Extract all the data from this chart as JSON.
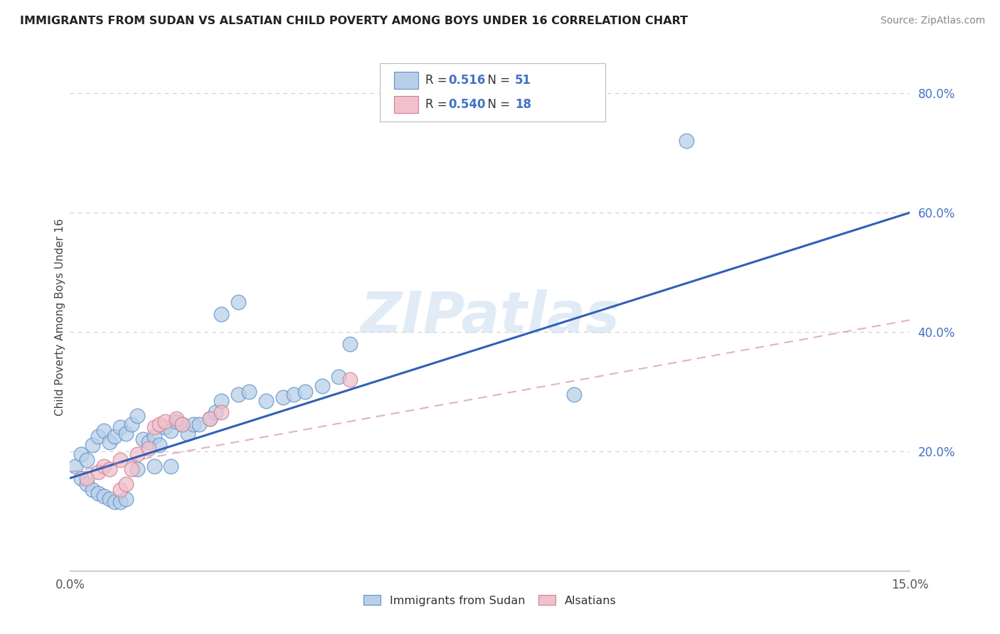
{
  "title": "IMMIGRANTS FROM SUDAN VS ALSATIAN CHILD POVERTY AMONG BOYS UNDER 16 CORRELATION CHART",
  "source": "Source: ZipAtlas.com",
  "ylabel": "Child Poverty Among Boys Under 16",
  "xlim": [
    0.0,
    0.15
  ],
  "ylim": [
    0.0,
    0.85
  ],
  "yticks": [
    0.2,
    0.4,
    0.6,
    0.8
  ],
  "ytick_labels": [
    "20.0%",
    "40.0%",
    "60.0%",
    "80.0%"
  ],
  "xticks": [
    0.0,
    0.15
  ],
  "xtick_labels": [
    "0.0%",
    "15.0%"
  ],
  "scatter_blue": [
    [
      0.001,
      0.175
    ],
    [
      0.002,
      0.195
    ],
    [
      0.003,
      0.185
    ],
    [
      0.004,
      0.21
    ],
    [
      0.005,
      0.225
    ],
    [
      0.006,
      0.235
    ],
    [
      0.007,
      0.215
    ],
    [
      0.008,
      0.225
    ],
    [
      0.009,
      0.24
    ],
    [
      0.01,
      0.23
    ],
    [
      0.011,
      0.245
    ],
    [
      0.012,
      0.26
    ],
    [
      0.013,
      0.22
    ],
    [
      0.014,
      0.215
    ],
    [
      0.015,
      0.225
    ],
    [
      0.016,
      0.21
    ],
    [
      0.017,
      0.24
    ],
    [
      0.018,
      0.235
    ],
    [
      0.019,
      0.25
    ],
    [
      0.02,
      0.245
    ],
    [
      0.021,
      0.23
    ],
    [
      0.022,
      0.245
    ],
    [
      0.023,
      0.245
    ],
    [
      0.025,
      0.255
    ],
    [
      0.026,
      0.265
    ],
    [
      0.027,
      0.285
    ],
    [
      0.03,
      0.295
    ],
    [
      0.032,
      0.3
    ],
    [
      0.035,
      0.285
    ],
    [
      0.038,
      0.29
    ],
    [
      0.04,
      0.295
    ],
    [
      0.042,
      0.3
    ],
    [
      0.045,
      0.31
    ],
    [
      0.048,
      0.325
    ],
    [
      0.05,
      0.38
    ],
    [
      0.002,
      0.155
    ],
    [
      0.003,
      0.145
    ],
    [
      0.004,
      0.135
    ],
    [
      0.005,
      0.13
    ],
    [
      0.006,
      0.125
    ],
    [
      0.007,
      0.12
    ],
    [
      0.008,
      0.115
    ],
    [
      0.009,
      0.115
    ],
    [
      0.01,
      0.12
    ],
    [
      0.012,
      0.17
    ],
    [
      0.015,
      0.175
    ],
    [
      0.018,
      0.175
    ],
    [
      0.027,
      0.43
    ],
    [
      0.03,
      0.45
    ],
    [
      0.09,
      0.295
    ],
    [
      0.11,
      0.72
    ]
  ],
  "scatter_pink": [
    [
      0.003,
      0.155
    ],
    [
      0.005,
      0.165
    ],
    [
      0.006,
      0.175
    ],
    [
      0.007,
      0.17
    ],
    [
      0.009,
      0.185
    ],
    [
      0.011,
      0.17
    ],
    [
      0.012,
      0.195
    ],
    [
      0.014,
      0.205
    ],
    [
      0.015,
      0.24
    ],
    [
      0.016,
      0.245
    ],
    [
      0.017,
      0.25
    ],
    [
      0.019,
      0.255
    ],
    [
      0.02,
      0.245
    ],
    [
      0.025,
      0.255
    ],
    [
      0.027,
      0.265
    ],
    [
      0.05,
      0.32
    ],
    [
      0.009,
      0.135
    ],
    [
      0.01,
      0.145
    ]
  ],
  "line_blue_x0": 0.0,
  "line_blue_y0": 0.155,
  "line_blue_x1": 0.15,
  "line_blue_y1": 0.6,
  "line_pink_x0": 0.0,
  "line_pink_y0": 0.165,
  "line_pink_x1": 0.15,
  "line_pink_y1": 0.42,
  "bg_color": "#ffffff",
  "scatter_blue_color": "#b8cfe8",
  "scatter_blue_edge": "#6090c8",
  "scatter_pink_color": "#f0c0cc",
  "scatter_pink_edge": "#d08090",
  "line_blue_color": "#3060b8",
  "line_pink_color": "#d08090",
  "watermark": "ZIPatlas",
  "grid_color": "#cccccc",
  "ytick_color": "#4472c4",
  "legend_r1_val": "0.516",
  "legend_n1_val": "51",
  "legend_r2_val": "0.540",
  "legend_n2_val": "18",
  "legend_blue_fill": "#b8cfe8",
  "legend_blue_edge": "#6090c8",
  "legend_pink_fill": "#f0c0cc",
  "legend_pink_edge": "#d08090"
}
